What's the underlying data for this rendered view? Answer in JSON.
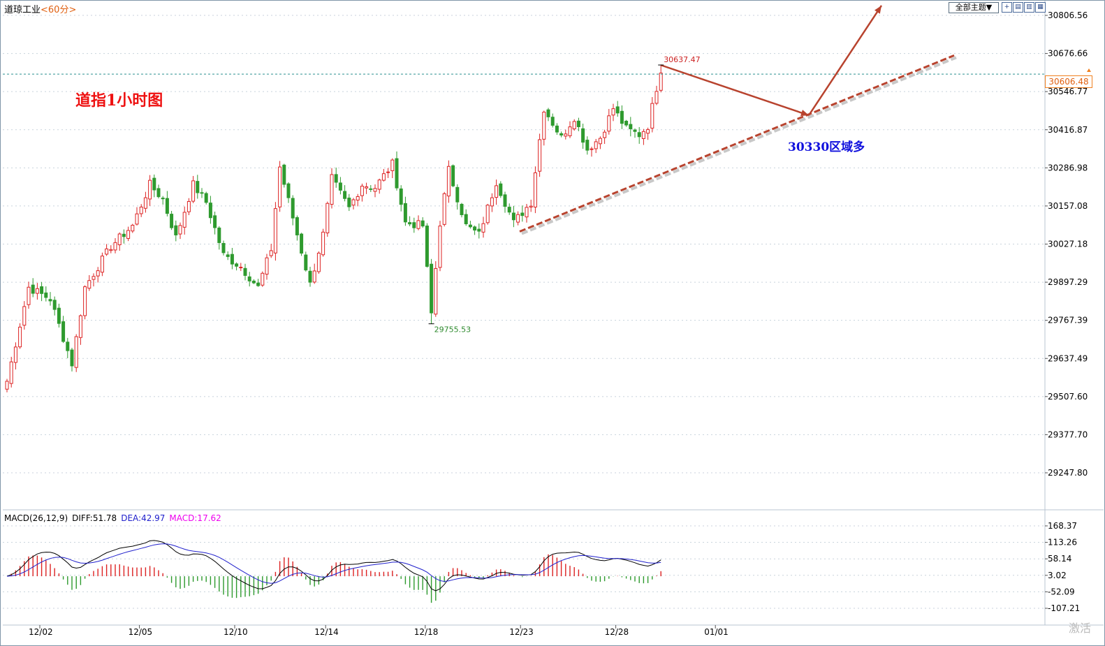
{
  "header": {
    "instrument": "道琼工业",
    "period": "<60分>",
    "theme_button": "全部主题▼",
    "view_buttons": [
      "+",
      "▤",
      "▥",
      "▦",
      "▧"
    ]
  },
  "annotations": {
    "chart_title": "道指1小时图",
    "buy_zone": "30330区域多",
    "high_label": "30637.47",
    "low_label": "29755.53",
    "last_price": "30606.48"
  },
  "macd_legend": {
    "params": "MACD(26,12,9)",
    "diff": "DIFF:51.78",
    "dea": "DEA:42.97",
    "macd": "MACD:17.62"
  },
  "watermark": "激活",
  "colors": {
    "up": "#dd2222",
    "down": "#2e9a2e",
    "diff_line": "#000000",
    "dea_line": "#2020cc",
    "macd_text": "#ee00ee",
    "trend_line": "#b8432e",
    "grid": "#c8d2dc"
  },
  "chart_data": [
    {
      "type": "candlestick",
      "title": "道指1小时图",
      "y_ticks": [
        30806.56,
        30676.66,
        30546.77,
        30416.87,
        30286.98,
        30157.08,
        30027.18,
        29897.29,
        29767.39,
        29637.49,
        29507.6,
        29377.7,
        29247.8
      ],
      "y_tick_labels": [
        "30806.56",
        "30676.66",
        "30546.77",
        "30416.87",
        "30286.98",
        "30157.08",
        "30027.18",
        "29897.29",
        "29767.39",
        "29637.49",
        "29507.60",
        "29377.70",
        "29247.80"
      ],
      "x_ticks": [
        "12/02",
        "12/05",
        "12/10",
        "12/14",
        "12/18",
        "12/23",
        "12/28",
        "01/01"
      ],
      "marked_high": 30637.47,
      "marked_low": 29755.53,
      "last_price": 30606.48,
      "trend_line": [
        {
          "x": "12/23",
          "y": 30070
        },
        {
          "x": "01/01+",
          "y": 30670
        }
      ],
      "projection_path": [
        30637,
        30466,
        30840
      ],
      "anchors": [
        [
          0,
          29560
        ],
        [
          5,
          29880
        ],
        [
          10,
          29840
        ],
        [
          15,
          29620
        ],
        [
          18,
          29880
        ],
        [
          24,
          30020
        ],
        [
          29,
          30090
        ],
        [
          33,
          30230
        ],
        [
          36,
          30180
        ],
        [
          39,
          30050
        ],
        [
          43,
          30230
        ],
        [
          46,
          30170
        ],
        [
          50,
          29990
        ],
        [
          54,
          29950
        ],
        [
          58,
          29880
        ],
        [
          61,
          30010
        ],
        [
          63,
          30290
        ],
        [
          67,
          30060
        ],
        [
          70,
          29890
        ],
        [
          73,
          30060
        ],
        [
          75,
          30250
        ],
        [
          79,
          30150
        ],
        [
          82,
          30230
        ],
        [
          85,
          30220
        ],
        [
          89,
          30300
        ],
        [
          92,
          30100
        ],
        [
          96,
          30090
        ],
        [
          98,
          29790
        ],
        [
          100,
          30100
        ],
        [
          102,
          30280
        ],
        [
          106,
          30090
        ],
        [
          109,
          30060
        ],
        [
          113,
          30240
        ],
        [
          117,
          30100
        ],
        [
          121,
          30170
        ],
        [
          124,
          30490
        ],
        [
          128,
          30390
        ],
        [
          131,
          30460
        ],
        [
          134,
          30350
        ],
        [
          137,
          30390
        ],
        [
          140,
          30490
        ],
        [
          143,
          30420
        ],
        [
          146,
          30400
        ],
        [
          148,
          30430
        ],
        [
          150,
          30560
        ],
        [
          151,
          30610
        ]
      ],
      "tick_x_index": [
        5,
        28,
        50,
        71,
        94,
        116,
        138,
        161
      ],
      "total_slots": 242
    },
    {
      "type": "macd",
      "params": "MACD(26,12,9)",
      "diff": 51.78,
      "dea": 42.97,
      "macd": 17.62,
      "y_ticks": [
        168.37,
        113.26,
        58.14,
        3.02,
        -52.09,
        -107.21
      ],
      "y_tick_labels": [
        "168.37",
        "113.26",
        "58.14",
        "3.02",
        "-52.09",
        "-107.21"
      ]
    }
  ]
}
